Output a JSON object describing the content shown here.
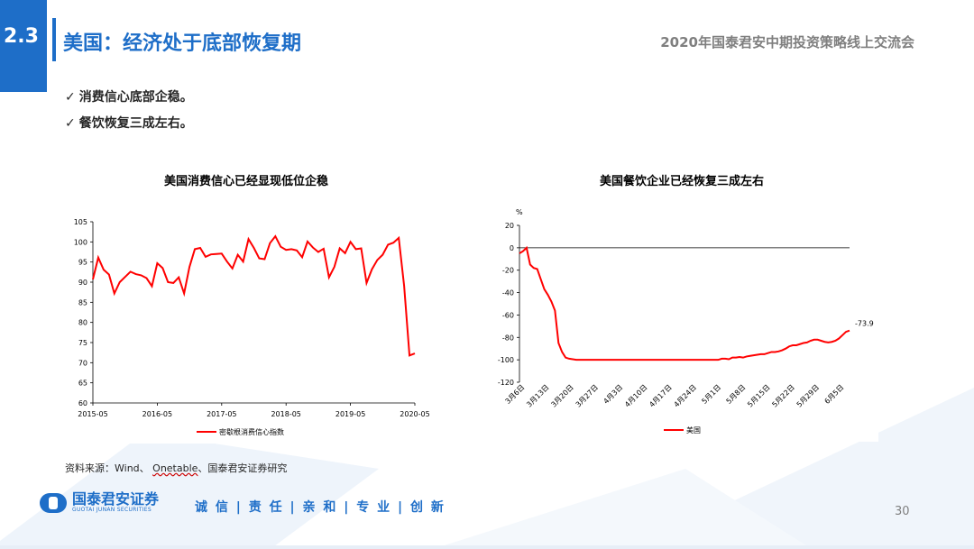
{
  "header": {
    "section_number": "2.3",
    "title": "美国：经济处于底部恢复期",
    "conference": "2020年国泰君安中期投资策略线上交流会"
  },
  "bullets": [
    {
      "check": "✓",
      "text": "消费信心底部企稳。"
    },
    {
      "check": "✓",
      "text": "餐饮恢复三成左右。"
    }
  ],
  "footer": {
    "source_prefix": "资料来源：Wind、 ",
    "source_underlined": "Onetable",
    "source_suffix": "、国泰君安证券研究",
    "logo_cn": "国泰君安证券",
    "logo_en": "GUOTAI JUNAN SECURITIES",
    "slogan": "诚 信 | 责 任 | 亲 和 | 专 业 | 创 新",
    "page_number": "30"
  },
  "colors": {
    "brand_blue": "#1e6ec8",
    "series_red": "#ff0000"
  },
  "chart_data": [
    {
      "type": "line",
      "title": "美国消费信心已经显现低位企稳",
      "xlabel": "",
      "ylabel": "",
      "x_ticks": [
        "2015-05",
        "2016-05",
        "2017-05",
        "2018-05",
        "2019-05",
        "2020-05"
      ],
      "y_ticks": [
        "60",
        "65",
        "70",
        "75",
        "80",
        "85",
        "90",
        "95",
        "100",
        "105"
      ],
      "ylim": [
        60,
        105
      ],
      "x_range": [
        "2015-05",
        "2020-05"
      ],
      "grid": false,
      "legend": "bottom",
      "series": [
        {
          "name": "密歇根消费信心指数",
          "x": [
            "2015-05",
            "2015-06",
            "2015-07",
            "2015-08",
            "2015-09",
            "2015-10",
            "2015-11",
            "2015-12",
            "2016-01",
            "2016-02",
            "2016-03",
            "2016-04",
            "2016-05",
            "2016-06",
            "2016-07",
            "2016-08",
            "2016-09",
            "2016-10",
            "2016-11",
            "2016-12",
            "2017-01",
            "2017-02",
            "2017-03",
            "2017-04",
            "2017-05",
            "2017-06",
            "2017-07",
            "2017-08",
            "2017-09",
            "2017-10",
            "2017-11",
            "2017-12",
            "2018-01",
            "2018-02",
            "2018-03",
            "2018-04",
            "2018-05",
            "2018-06",
            "2018-07",
            "2018-08",
            "2018-09",
            "2018-10",
            "2018-11",
            "2018-12",
            "2019-01",
            "2019-02",
            "2019-03",
            "2019-04",
            "2019-05",
            "2019-06",
            "2019-07",
            "2019-08",
            "2019-09",
            "2019-10",
            "2019-11",
            "2019-12",
            "2020-01",
            "2020-02",
            "2020-03",
            "2020-04",
            "2020-05"
          ],
          "values": [
            90.7,
            96.1,
            93.1,
            91.9,
            87.2,
            90.0,
            91.3,
            92.6,
            92.0,
            91.7,
            91.0,
            89.0,
            94.7,
            93.5,
            90.0,
            89.8,
            91.2,
            87.2,
            93.8,
            98.2,
            98.5,
            96.3,
            96.9,
            97.0,
            97.1,
            95.1,
            93.4,
            96.8,
            95.1,
            100.7,
            98.5,
            95.9,
            95.7,
            99.7,
            101.4,
            98.8,
            98.0,
            98.2,
            97.9,
            96.2,
            100.1,
            98.6,
            97.5,
            98.3,
            91.2,
            93.8,
            98.4,
            97.2,
            100.0,
            98.2,
            98.4,
            89.8,
            93.2,
            95.5,
            96.8,
            99.3,
            99.8,
            101.0,
            89.1,
            71.8,
            72.3
          ]
        }
      ]
    },
    {
      "type": "line",
      "title": "美国餐饮企业已经恢复三成左右",
      "xlabel": "",
      "ylabel": "%",
      "x_ticks": [
        "3月6日",
        "3月13日",
        "3月20日",
        "3月27日",
        "4月3日",
        "4月10日",
        "4月17日",
        "4月24日",
        "5月1日",
        "5月8日",
        "5月15日",
        "5月22日",
        "5月29日",
        "6月5日"
      ],
      "y_ticks": [
        "-120",
        "-100",
        "-80",
        "-60",
        "-40",
        "-20",
        "0",
        "20"
      ],
      "ylim": [
        -120,
        20
      ],
      "grid": false,
      "legend": "bottom",
      "annotations": [
        {
          "text": "-73.9"
        }
      ],
      "series": [
        {
          "name": "美国",
          "values": [
            -5,
            -3,
            0,
            -15,
            -18,
            -19,
            -28,
            -37,
            -42,
            -48,
            -56,
            -85,
            -93,
            -98,
            -99,
            -99.5,
            -100,
            -100,
            -100,
            -100,
            -100,
            -100,
            -100,
            -100,
            -100,
            -100,
            -100,
            -100,
            -100,
            -100,
            -100,
            -100,
            -100,
            -100,
            -100,
            -100,
            -100,
            -100,
            -100,
            -100,
            -100,
            -100,
            -100,
            -100,
            -100,
            -100,
            -100,
            -100,
            -100,
            -100,
            -100,
            -100,
            -100,
            -100,
            -100,
            -100,
            -100,
            -99,
            -99,
            -99.5,
            -98,
            -98,
            -97.5,
            -98,
            -97,
            -96.5,
            -96,
            -95.5,
            -95,
            -95,
            -94,
            -93,
            -93,
            -92.5,
            -91.5,
            -90,
            -88,
            -87,
            -87,
            -86,
            -85,
            -84.5,
            -83,
            -82,
            -82,
            -83,
            -84,
            -84.5,
            -84,
            -83,
            -81,
            -78,
            -75,
            -73.9
          ]
        }
      ]
    }
  ]
}
